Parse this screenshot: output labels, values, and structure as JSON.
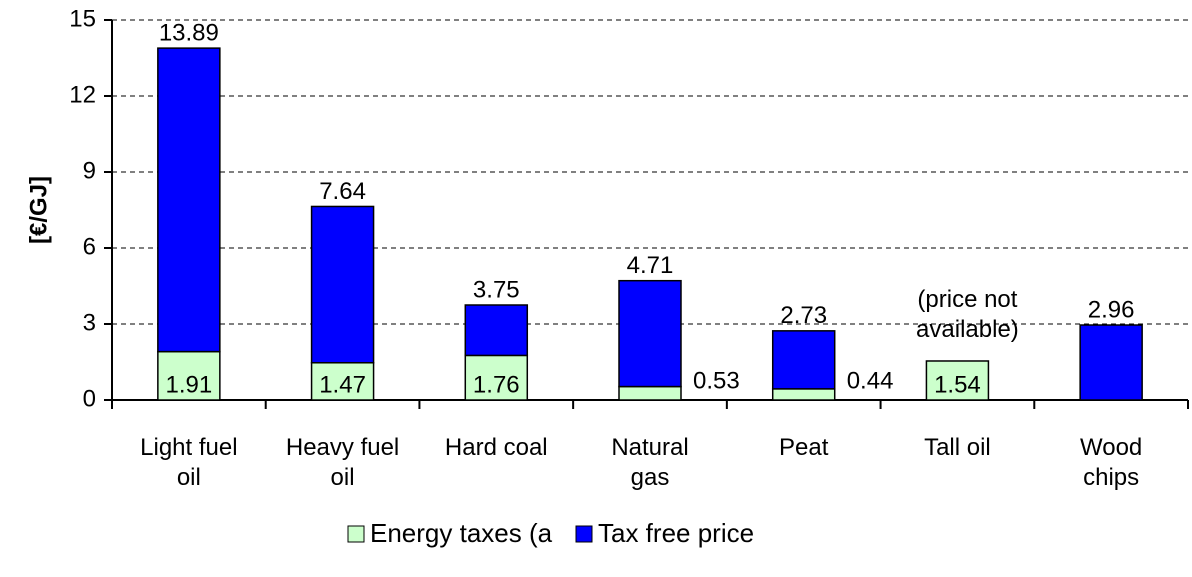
{
  "chart_data": {
    "type": "stacked_bar",
    "y_label": "[€/GJ]",
    "categories": [
      "Light fuel\noil",
      "Heavy fuel\noil",
      "Hard coal",
      "Natural\ngas",
      "Peat",
      "Tall oil",
      "Wood\nchips"
    ],
    "series": [
      {
        "name": "Energy taxes (a",
        "color": "#ccffcc",
        "values": [
          1.91,
          1.47,
          1.76,
          0.53,
          0.44,
          1.54,
          null
        ]
      },
      {
        "name": "Tax free price",
        "color": "#0000ff",
        "values": [
          11.98,
          6.17,
          1.99,
          4.18,
          2.29,
          null,
          2.96
        ]
      }
    ],
    "totals": [
      13.89,
      7.64,
      3.75,
      4.71,
      2.73,
      null,
      2.96
    ],
    "annotations": [
      {
        "category": 5,
        "text": "(price not\navailable)"
      }
    ],
    "ylim": [
      0,
      15
    ],
    "yticks": [
      0,
      3,
      6,
      9,
      12,
      15
    ],
    "grid": true
  }
}
